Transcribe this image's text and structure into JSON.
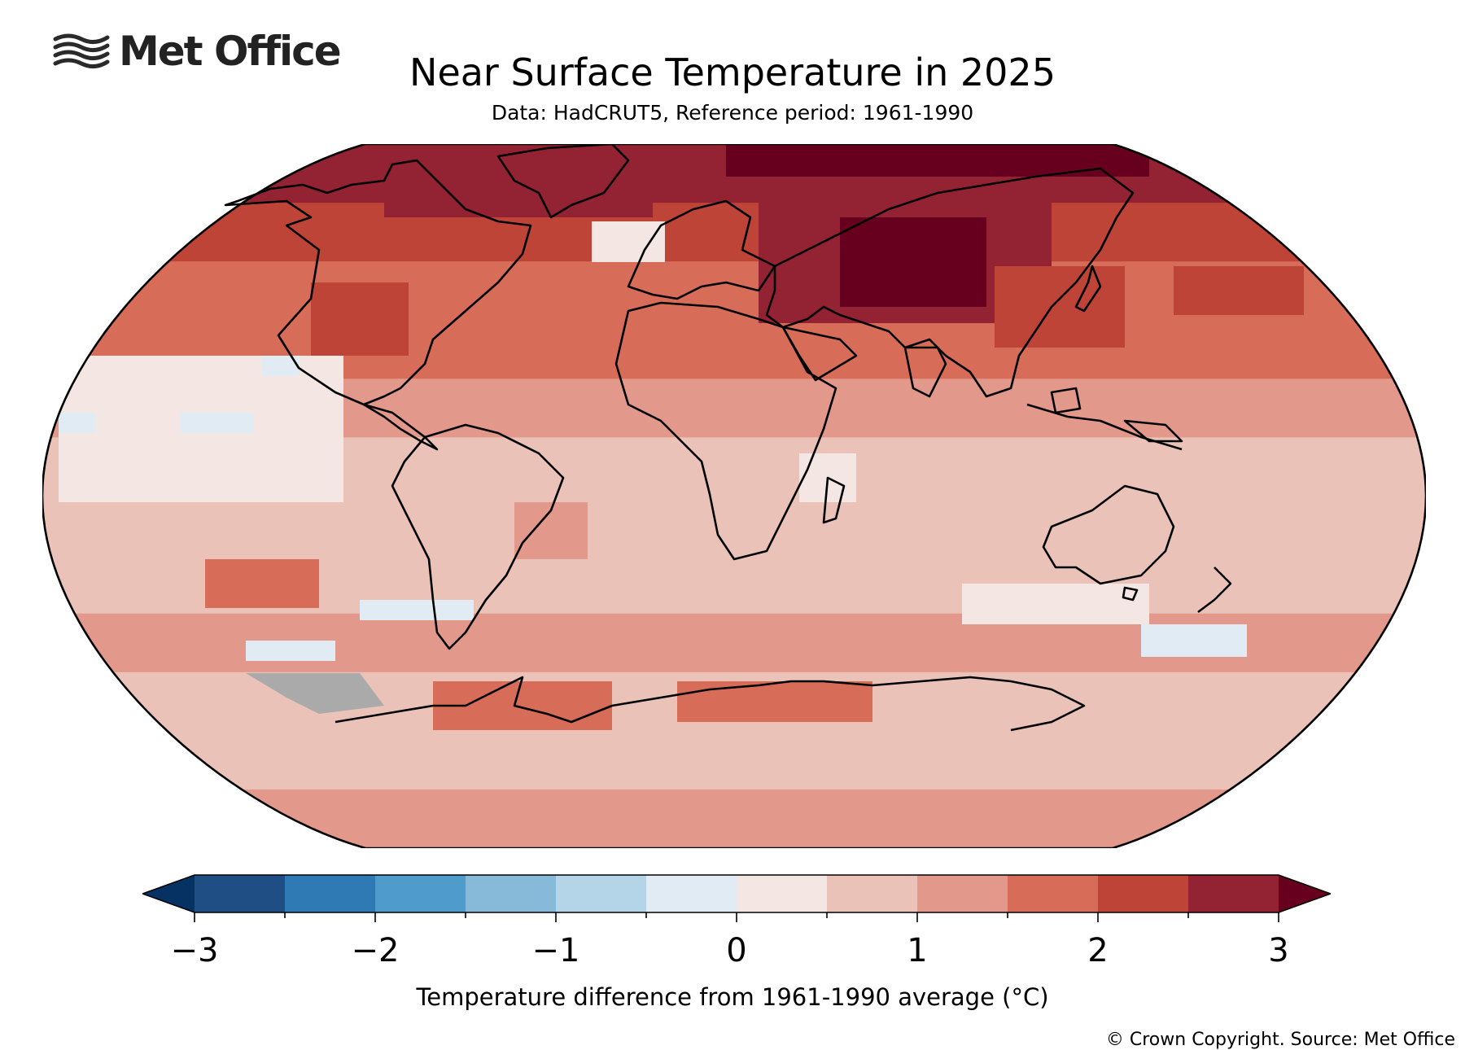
{
  "logo": {
    "text": "Met Office",
    "icon": "met-office-waves-icon"
  },
  "title": "Near Surface Temperature in 2025",
  "subtitle": "Data: HadCRUT5, Reference period: 1961-1990",
  "colorbar": {
    "ticks": [
      "−3",
      "−2",
      "−1",
      "0",
      "1",
      "2",
      "3"
    ],
    "tick_values": [
      -3,
      -2,
      -1,
      0,
      1,
      2,
      3
    ],
    "bin_edges": [
      -3,
      -2.5,
      -2,
      -1.5,
      -1,
      -0.5,
      0,
      0.5,
      1,
      1.5,
      2,
      2.5,
      3
    ],
    "colors": [
      "#1f4e85",
      "#2f79b5",
      "#4f9bcb",
      "#87bad9",
      "#b4d4e7",
      "#e0ebf3",
      "#f4e6e3",
      "#ebc2b8",
      "#e2988a",
      "#d76c58",
      "#bf4438",
      "#932232"
    ],
    "under_color": "#063263",
    "over_color": "#67001f",
    "label": "Temperature difference from 1961-1990 average (°C)"
  },
  "missing_color": "#aaaaaa",
  "copyright": "© Crown Copyright. Source: Met Office",
  "map": {
    "projection": "Robinson",
    "variable": "near surface temperature anomaly",
    "units": "°C",
    "anomaly_by_latitude_band": [
      {
        "lat": "80N",
        "anomaly": 2.7
      },
      {
        "lat": "70N",
        "anomaly": 2.2
      },
      {
        "lat": "60N",
        "anomaly": 1.9
      },
      {
        "lat": "45N",
        "anomaly": 1.6
      },
      {
        "lat": "30N",
        "anomaly": 1.4
      },
      {
        "lat": "15N",
        "anomaly": 0.8
      },
      {
        "lat": "0",
        "anomaly": 0.6
      },
      {
        "lat": "15S",
        "anomaly": 0.7
      },
      {
        "lat": "30S",
        "anomaly": 1.0
      },
      {
        "lat": "45S",
        "anomaly": 0.9
      },
      {
        "lat": "60S",
        "anomaly": 0.6
      },
      {
        "lat": "70S",
        "anomaly": 1.3
      }
    ],
    "features": {
      "siberia_max": 3.2,
      "tropical_pacific": 0.1,
      "southern_ocean_cool_patch": -0.1,
      "southeast_pacific_missing": "no data"
    }
  }
}
